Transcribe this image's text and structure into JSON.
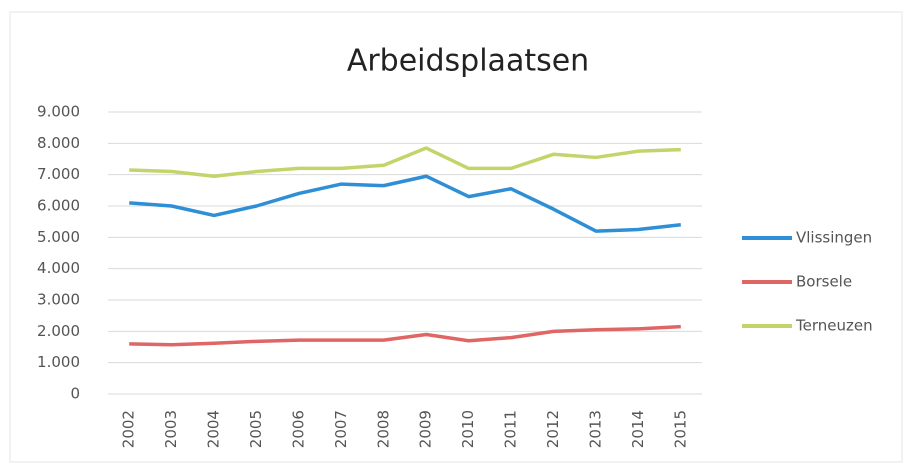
{
  "chart_data": {
    "type": "line",
    "title": "Arbeidsplaatsen",
    "categories": [
      "2002",
      "2003",
      "2004",
      "2005",
      "2006",
      "2007",
      "2008",
      "2009",
      "2010",
      "2011",
      "2012",
      "2013",
      "2014",
      "2015"
    ],
    "series": [
      {
        "name": "Vlissingen",
        "color": "#2e8fd6",
        "values": [
          6100,
          6000,
          5700,
          6000,
          6400,
          6700,
          6650,
          6950,
          6300,
          6550,
          5900,
          5200,
          5250,
          5400
        ]
      },
      {
        "name": "Borsele",
        "color": "#e06666",
        "values": [
          1600,
          1570,
          1620,
          1680,
          1720,
          1720,
          1720,
          1900,
          1700,
          1800,
          2000,
          2050,
          2080,
          2150
        ]
      },
      {
        "name": "Terneuzen",
        "color": "#c3d46b",
        "values": [
          7150,
          7100,
          6950,
          7100,
          7200,
          7200,
          7300,
          7850,
          7200,
          7200,
          7650,
          7550,
          7750,
          7800
        ]
      }
    ],
    "ylim": [
      0,
      9000
    ],
    "yticks": [
      0,
      {
        "value": 1000,
        "label": "1.000"
      },
      {
        "value": 2000,
        "label": "2.000"
      },
      {
        "value": 3000,
        "label": "3.000"
      },
      {
        "value": 4000,
        "label": "4.000"
      },
      {
        "value": 5000,
        "label": "5.000"
      },
      {
        "value": 6000,
        "label": "6.000"
      },
      {
        "value": 7000,
        "label": "7.000"
      },
      {
        "value": 8000,
        "label": "8.000"
      },
      {
        "value": 9000,
        "label": "9.000"
      }
    ],
    "grid": true,
    "legend": "right"
  }
}
